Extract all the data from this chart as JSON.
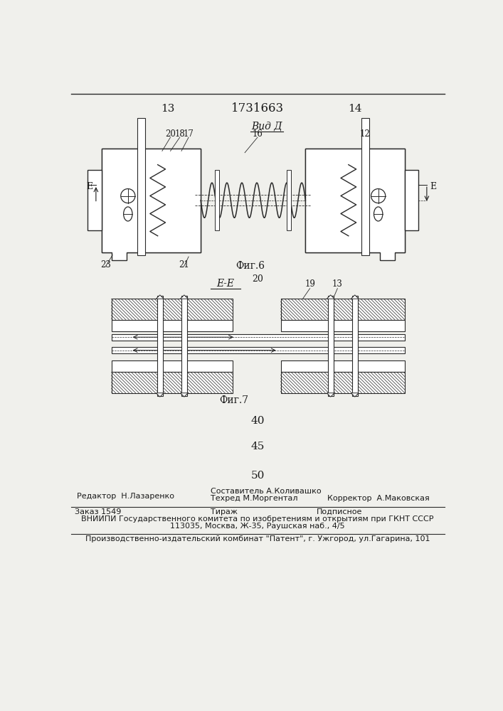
{
  "page_number_left": "13",
  "page_patent": "1731663",
  "page_number_right": "14",
  "fig6_label": "Фиг.6",
  "fig7_label": "Фиг.7",
  "view_label": "Вид Д",
  "section_label": "Е-Е",
  "num_20": "20",
  "num_18": "18",
  "num_17": "17",
  "num_16": "16",
  "num_12": "12",
  "num_23": "23",
  "num_21": "21",
  "num_19": "19",
  "num_13": "13",
  "num_40": "40",
  "num_45": "45",
  "num_50": "50",
  "editor_line": "Редактор  Н.Лазаренко",
  "compositor_line": "Составитель А.Коливашко",
  "techred_line": "Техред М.Моргентал",
  "corrector_line": "Корректор  А.Маковская",
  "order_line": "Заказ 1549",
  "tirazh_line": "Тираж",
  "podpisnoe_line": "Подписное",
  "vniipii_line1": "ВНИИПИ Государственного комитета по изобретениям и открытиям при ГКНТ СССР",
  "vniipii_line2": "113035, Москва, Ж-35, Раушская наб., 4/5",
  "factory_line": "Производственно-издательский комбинат \"Патент\", г. Ужгород, ул.Гагарина, 101",
  "bg_color": "#f0f0ec",
  "text_color": "#1a1a1a",
  "line_color": "#2a2a2a"
}
